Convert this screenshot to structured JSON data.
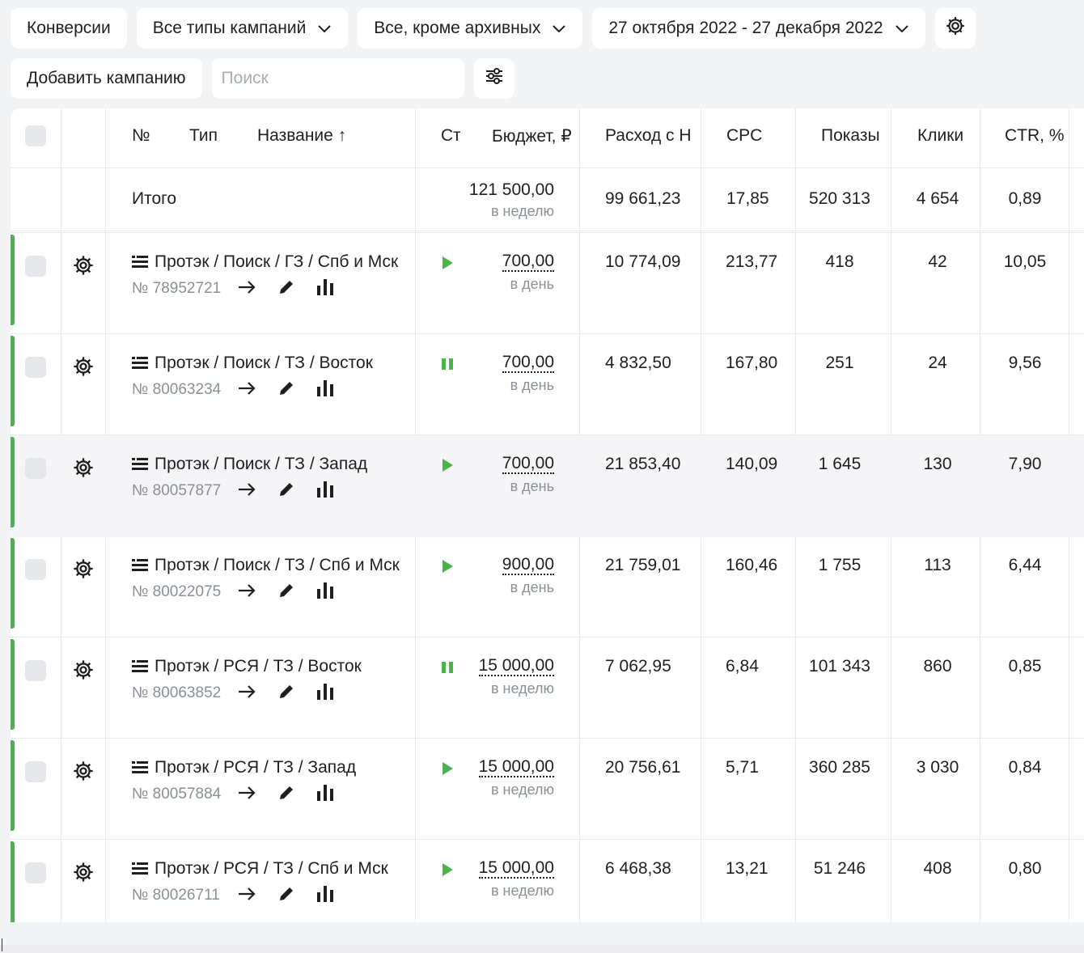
{
  "filters": {
    "conversions": "Конверсии",
    "campaign_types": "Все типы кампаний",
    "archive_filter": "Все, кроме архивных",
    "date_range": "27 октября 2022 - 27 декабря 2022"
  },
  "actions": {
    "add_campaign": "Добавить кампанию",
    "search_placeholder": "Поиск"
  },
  "table": {
    "headers": {
      "no": "№",
      "type": "Тип",
      "name": "Название ↑",
      "status": "Ст",
      "budget": "Бюджет, ₽",
      "expense": "Расход с Н",
      "cpc": "CPC",
      "impressions": "Показы",
      "clicks": "Клики",
      "ctr": "CTR, %"
    },
    "total": {
      "label": "Итого",
      "budget": "121 500,00",
      "budget_period": "в неделю",
      "expense": "99 661,23",
      "cpc": "17,85",
      "impressions": "520 313",
      "clicks": "4 654",
      "ctr": "0,89"
    },
    "rows": [
      {
        "name": "Протэк / Поиск / ГЗ / Спб и Мск",
        "id": "№ 78952721",
        "status": "play",
        "budget": "700,00",
        "period": "в день",
        "expense": "10 774,09",
        "cpc": "213,77",
        "impressions": "418",
        "clicks": "42",
        "ctr": "10,05"
      },
      {
        "name": "Протэк / Поиск / ТЗ / Восток",
        "id": "№ 80063234",
        "status": "pause",
        "budget": "700,00",
        "period": "в день",
        "expense": "4 832,50",
        "cpc": "167,80",
        "impressions": "251",
        "clicks": "24",
        "ctr": "9,56"
      },
      {
        "name": "Протэк / Поиск / ТЗ / Запад",
        "id": "№ 80057877",
        "status": "play",
        "budget": "700,00",
        "period": "в день",
        "expense": "21 853,40",
        "cpc": "140,09",
        "impressions": "1 645",
        "clicks": "130",
        "ctr": "7,90"
      },
      {
        "name": "Протэк / Поиск / ТЗ / Спб и Мск",
        "id": "№ 80022075",
        "status": "play",
        "budget": "900,00",
        "period": "в день",
        "expense": "21 759,01",
        "cpc": "160,46",
        "impressions": "1 755",
        "clicks": "113",
        "ctr": "6,44"
      },
      {
        "name": "Протэк / РСЯ / ТЗ / Восток",
        "id": "№ 80063852",
        "status": "pause",
        "budget": "15 000,00",
        "period": "в неделю",
        "expense": "7 062,95",
        "cpc": "6,84",
        "impressions": "101 343",
        "clicks": "860",
        "ctr": "0,85"
      },
      {
        "name": "Протэк / РСЯ / ТЗ / Запад",
        "id": "№ 80057884",
        "status": "play",
        "budget": "15 000,00",
        "period": "в неделю",
        "expense": "20 756,61",
        "cpc": "5,71",
        "impressions": "360 285",
        "clicks": "3 030",
        "ctr": "0,84"
      },
      {
        "name": "Протэк / РСЯ / ТЗ / Спб и Мск",
        "id": "№ 80026711",
        "status": "play",
        "budget": "15 000,00",
        "period": "в неделю",
        "expense": "6 468,38",
        "cpc": "13,21",
        "impressions": "51 246",
        "clicks": "408",
        "ctr": "0,80"
      }
    ]
  },
  "colors": {
    "status_green": "#4bb34b",
    "accent_bar": "#4bb34b",
    "muted_text": "#8a8f98"
  }
}
